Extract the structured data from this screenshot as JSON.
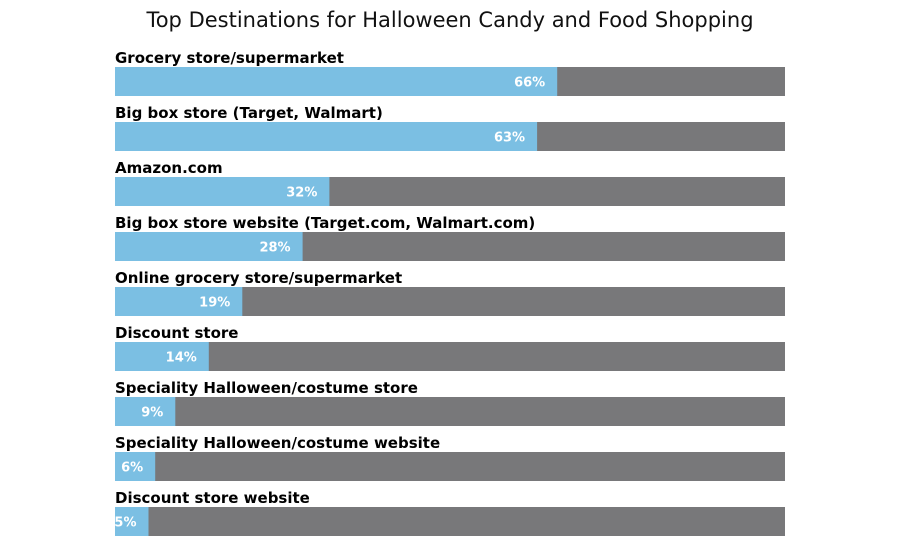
{
  "chart_data": {
    "type": "bar",
    "orientation": "horizontal",
    "title": "Top Destinations for Halloween Candy and Food Shopping",
    "categories": [
      "Grocery store/supermarket",
      "Big box store (Target, Walmart)",
      "Amazon.com",
      "Big box store website (Target.com, Walmart.com)",
      "Online grocery store/supermarket",
      "Discount store",
      "Speciality Halloween/costume store",
      "Speciality Halloween/costume website",
      "Discount store website"
    ],
    "values": [
      66,
      63,
      32,
      28,
      19,
      14,
      9,
      6,
      5
    ],
    "data_labels": [
      "66%",
      "63%",
      "32%",
      "28%",
      "19%",
      "14%",
      "9%",
      "6%",
      "5%"
    ],
    "xlim": [
      0,
      100
    ],
    "grid": false,
    "legend": "none",
    "colors": {
      "bar": "#7bbfe3",
      "track": "#78787a",
      "category_text": "#000000",
      "value_text": "#ffffff",
      "title_text": "#111111"
    }
  }
}
